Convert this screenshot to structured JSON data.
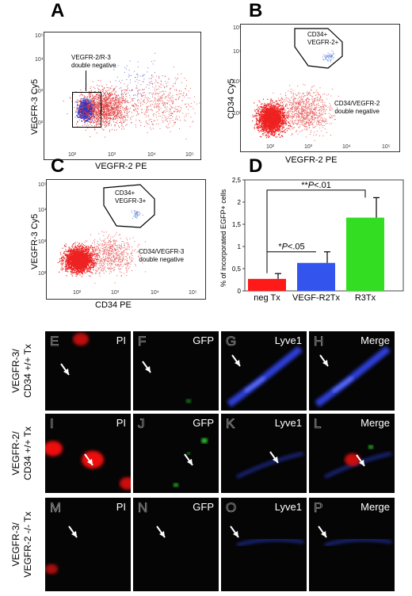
{
  "panels": {
    "A": {
      "letter": "A",
      "ylabel": "VEGFR-3  Cy5",
      "xlabel": "VEGFR-2  PE",
      "gate": "VEGFR-2/R-3\ndouble negative"
    },
    "B": {
      "letter": "B",
      "ylabel": "CD34  Cy5",
      "xlabel": "VEGFR-2  PE",
      "gate": "CD34+\nVEGFR-2+",
      "region": "CD34/VEGFR-2\ndouble negative"
    },
    "C": {
      "letter": "C",
      "ylabel": "VEGFR-3 Cy5",
      "xlabel": "CD34  PE",
      "gate": "CD34+\nVEGFR-3+",
      "region": "CD34/VEGFR-3\ndouble negative"
    },
    "D": {
      "letter": "D"
    }
  },
  "ticks": {
    "e2": "10²",
    "e3": "10³",
    "e4": "10⁴",
    "e5": "10⁵"
  },
  "chart_data": {
    "type": "bar",
    "ylabel": "% of incorporated EGFP+ cells",
    "categories": [
      "neg Tx",
      "VEGF-R2Tx",
      "R3Tx"
    ],
    "values": [
      0.27,
      0.63,
      1.65
    ],
    "errors": [
      0.12,
      0.25,
      0.45
    ],
    "colors": [
      "#ff1a1a",
      "#3355ee",
      "#33dd22"
    ],
    "ylim": [
      0,
      2.5
    ],
    "yticks": [
      "0",
      "0,5",
      "1",
      "1,5",
      "2",
      "2,5"
    ],
    "annotations": [
      {
        "text_prefix": "*",
        "text_italic": "P",
        "text_suffix": "<.05",
        "between": [
          0,
          1
        ]
      },
      {
        "text_prefix": "**",
        "text_italic": "P",
        "text_suffix": "<.01",
        "between": [
          0,
          2
        ]
      }
    ]
  },
  "micrographs": {
    "rows": [
      {
        "label_line1": "VEGFR-3/",
        "label_line2": "CD34 +/+ Tx",
        "cells": [
          {
            "letter": "E",
            "stain": "PI"
          },
          {
            "letter": "F",
            "stain": "GFP"
          },
          {
            "letter": "G",
            "stain": "Lyve1"
          },
          {
            "letter": "H",
            "stain": "Merge"
          }
        ]
      },
      {
        "label_line1": "VEGFR-2/",
        "label_line2": "CD34 +/+ Tx",
        "cells": [
          {
            "letter": "I",
            "stain": "PI"
          },
          {
            "letter": "J",
            "stain": "GFP"
          },
          {
            "letter": "K",
            "stain": "Lyve1"
          },
          {
            "letter": "L",
            "stain": "Merge"
          }
        ]
      },
      {
        "label_line1": "VEGFR-3/",
        "label_line2": "VEGFR-2 -/- Tx",
        "cells": [
          {
            "letter": "M",
            "stain": "PI"
          },
          {
            "letter": "N",
            "stain": "GFP"
          },
          {
            "letter": "O",
            "stain": "Lyve1"
          },
          {
            "letter": "P",
            "stain": "Merge"
          }
        ]
      }
    ]
  }
}
